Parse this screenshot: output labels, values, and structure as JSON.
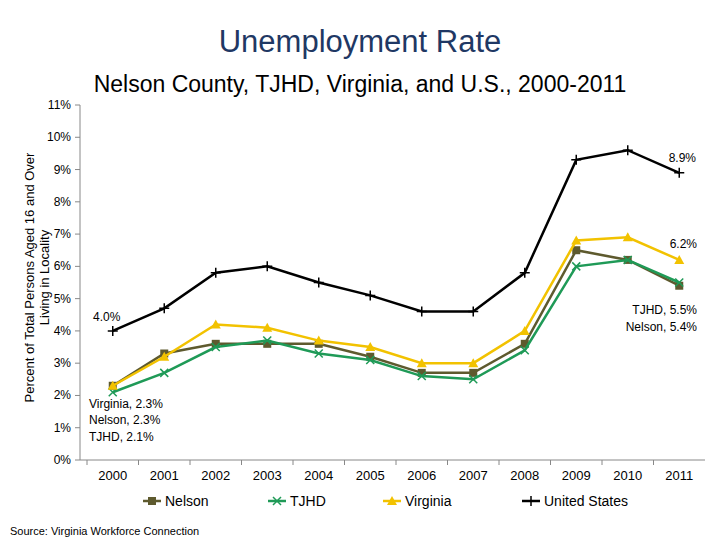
{
  "chart_data": {
    "type": "line",
    "title": "Unemployment Rate",
    "subtitle": "Nelson County, TJHD, Virginia, and U.S., 2000-2011",
    "y_label": "Percent of Total Persons Aged 16 and Over Living in Locality",
    "source": "Source: Virginia Workforce Connection",
    "categories": [
      "2000",
      "2001",
      "2002",
      "2003",
      "2004",
      "2005",
      "2006",
      "2007",
      "2008",
      "2009",
      "2010",
      "2011"
    ],
    "series": [
      {
        "name": "Nelson",
        "color": "#5e5a2e",
        "marker": "square",
        "values": [
          2.3,
          3.3,
          3.6,
          3.6,
          3.6,
          3.2,
          2.7,
          2.7,
          3.6,
          6.5,
          6.2,
          5.4
        ]
      },
      {
        "name": "TJHD",
        "color": "#1f9a57",
        "marker": "x",
        "values": [
          2.1,
          2.7,
          3.5,
          3.7,
          3.3,
          3.1,
          2.6,
          2.5,
          3.4,
          6.0,
          6.2,
          5.5
        ]
      },
      {
        "name": "Virginia",
        "color": "#f2c200",
        "marker": "triangle",
        "values": [
          2.3,
          3.2,
          4.2,
          4.1,
          3.7,
          3.5,
          3.0,
          3.0,
          4.0,
          6.8,
          6.9,
          6.2
        ]
      },
      {
        "name": "United States",
        "color": "#000000",
        "marker": "plus",
        "values": [
          4.0,
          4.7,
          5.8,
          6.0,
          5.5,
          5.1,
          4.6,
          4.6,
          5.8,
          9.3,
          9.6,
          8.9
        ]
      }
    ],
    "annotations": [
      "8.9%",
      "6.2%",
      "TJHD, 5.5%",
      "Nelson, 5.4%",
      "4.0%",
      "Virginia, 2.3%",
      "Nelson, 2.3%",
      "TJHD, 2.1%"
    ],
    "ylim": [
      0,
      11
    ],
    "yticks": [
      {
        "value": 0,
        "label": "0%"
      },
      {
        "value": 1,
        "label": "1%"
      },
      {
        "value": 2,
        "label": "2%"
      },
      {
        "value": 3,
        "label": "3%"
      },
      {
        "value": 4,
        "label": "4%"
      },
      {
        "value": 5,
        "label": "5%"
      },
      {
        "value": 6,
        "label": "6%"
      },
      {
        "value": 7,
        "label": "7%"
      },
      {
        "value": 8,
        "label": "8%"
      },
      {
        "value": 9,
        "label": "9%"
      },
      {
        "value": 10,
        "label": "10%"
      },
      {
        "value": 11,
        "label": "11%"
      }
    ],
    "grid": false,
    "legend": "bottom"
  }
}
